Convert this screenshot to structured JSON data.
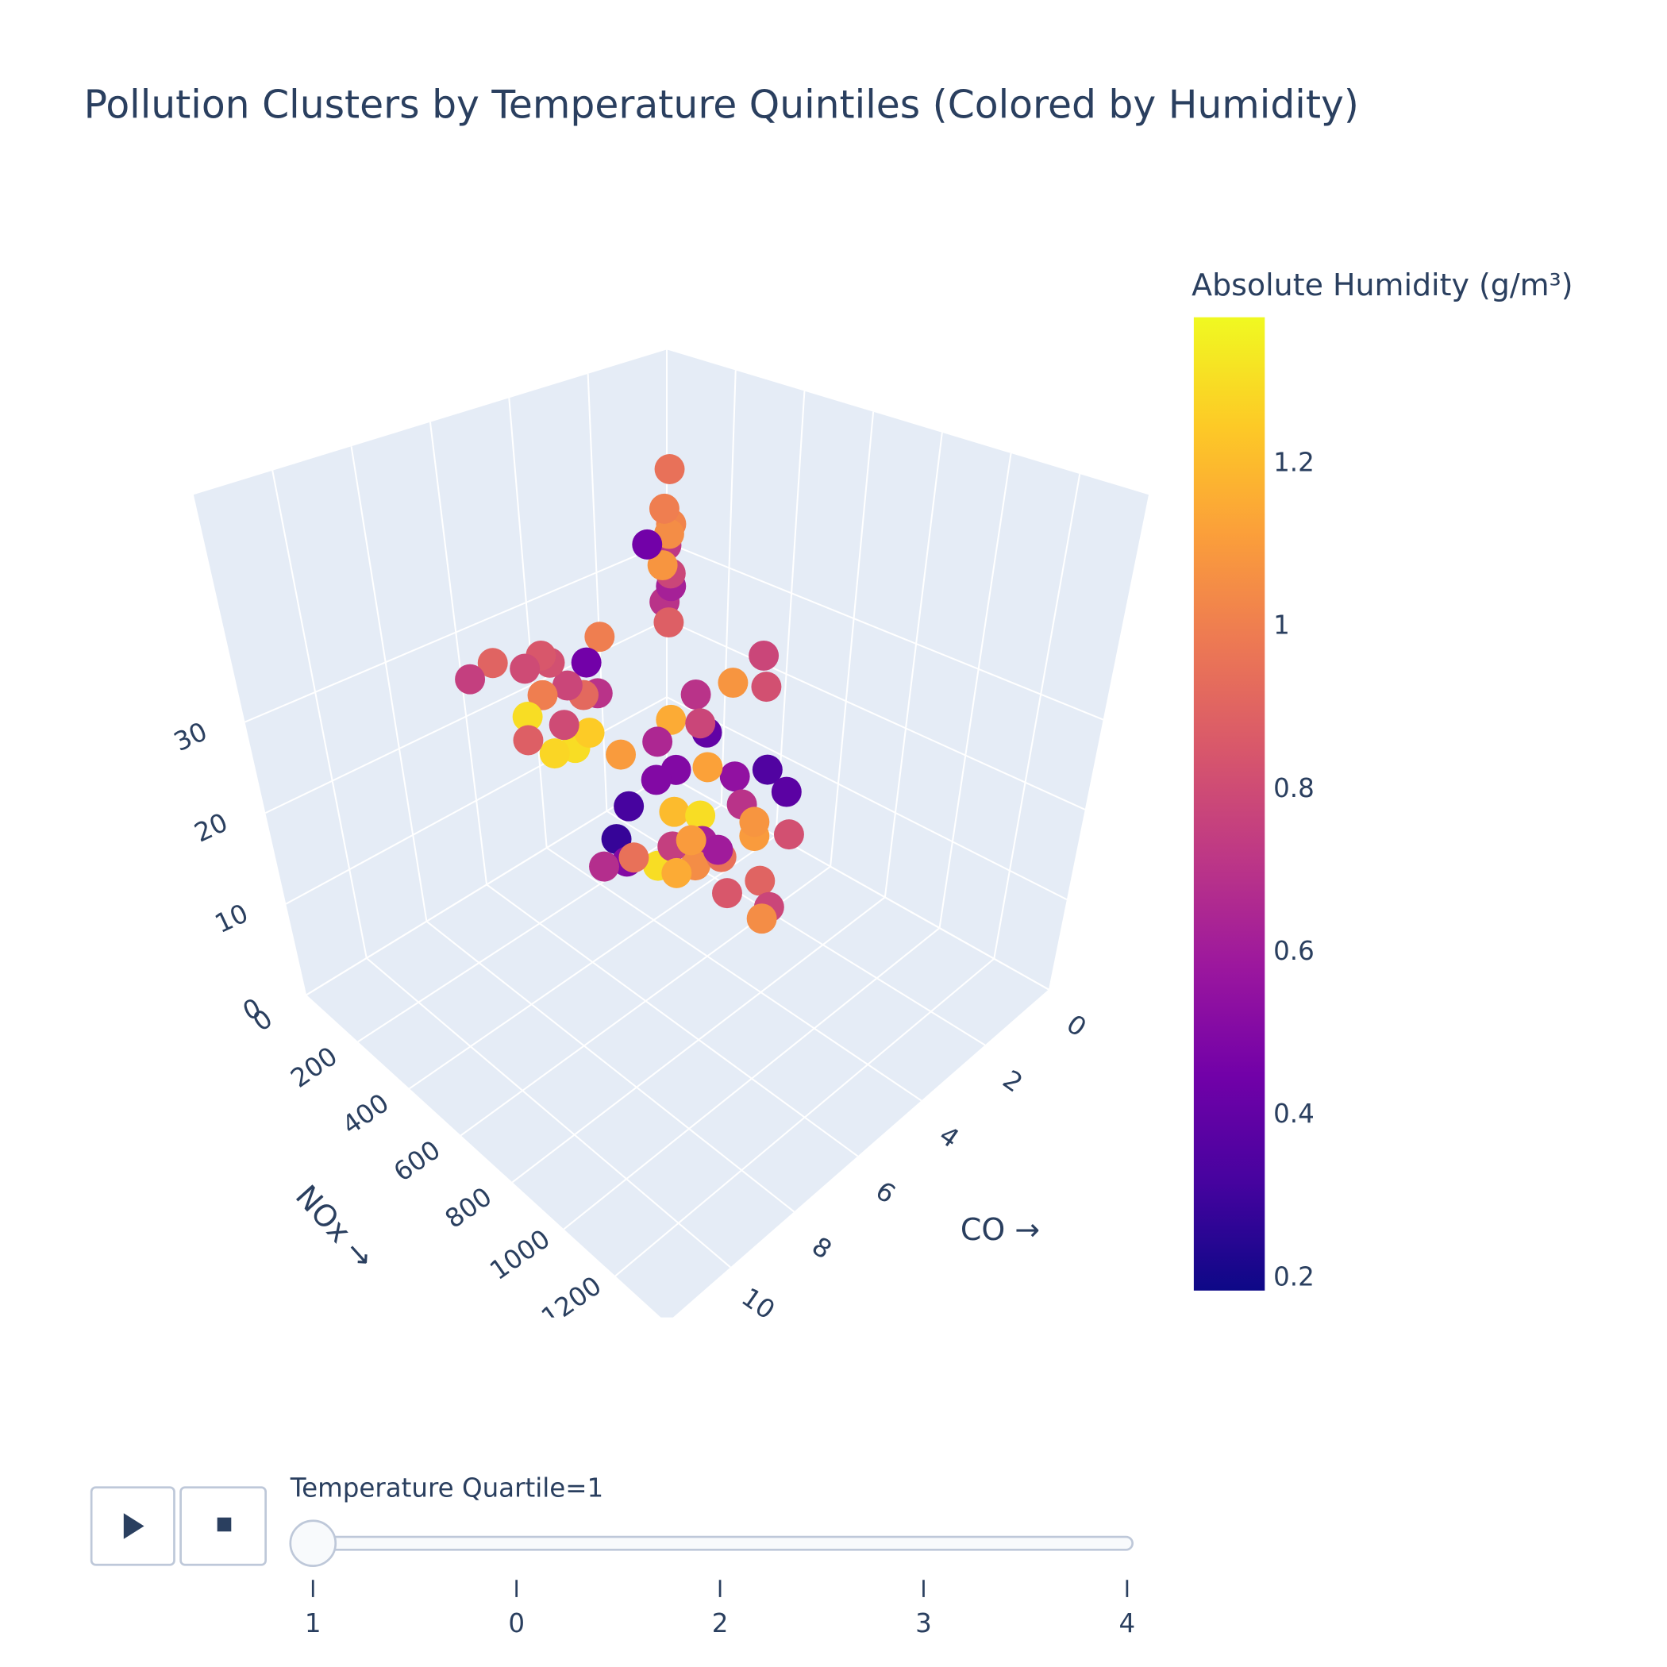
{
  "chart_data": {
    "type": "scatter3d",
    "title": "Pollution Clusters by Temperature Quintiles (Colored by Humidity)",
    "xaxis_title": "CO →",
    "yaxis_title": "NOx →",
    "xlim": [
      0,
      12
    ],
    "ylim": [
      0,
      1400
    ],
    "zlim": [
      0,
      55
    ],
    "xticks": [
      0,
      2,
      4,
      6,
      8,
      10
    ],
    "yticks": [
      0,
      200,
      400,
      600,
      800,
      1000,
      1200
    ],
    "zticks": [
      0,
      10,
      20,
      30
    ],
    "x": [
      0.1,
      0.2,
      0.1,
      0.2,
      0.1,
      0.3,
      0.2,
      0.1,
      0.2,
      0.3,
      0.6,
      6,
      5.4,
      4.6,
      4.2,
      3.8,
      4.4,
      3.5,
      4.8,
      5.0,
      4.0,
      4.5,
      3.8,
      3.3,
      3.0,
      2.8,
      3.6,
      2.5,
      2,
      1.5,
      2.5,
      3,
      3.6,
      3.2,
      2.8,
      2.2,
      1.8,
      2.4,
      1.6,
      1.2,
      1,
      0.8,
      0.6,
      1.4,
      1.9,
      2.6,
      3,
      1.2,
      0.9,
      0.5,
      0.25,
      0.4,
      0.7,
      1.1,
      2.0,
      2.6,
      1.5,
      2.1,
      2.9,
      3.4,
      1.7,
      2.3,
      1.3,
      0.9,
      2.7,
      1.9
    ],
    "y": [
      20,
      15,
      25,
      30,
      10,
      20,
      35,
      25,
      15,
      40,
      5,
      30,
      40,
      50,
      60,
      40,
      80,
      60,
      70,
      90,
      100,
      120,
      110,
      90,
      70,
      80,
      140,
      60,
      250,
      200,
      300,
      150,
      170,
      210,
      280,
      350,
      400,
      490,
      520,
      450,
      380,
      330,
      420,
      300,
      180,
      130,
      200,
      250,
      200,
      280,
      350,
      380,
      500,
      560,
      600,
      640,
      480,
      420,
      360,
      260,
      310,
      220,
      160,
      240,
      390,
      340
    ],
    "z": [
      40,
      35,
      33,
      32,
      30,
      28,
      27,
      25,
      23,
      21,
      31,
      25,
      26,
      24,
      25,
      23,
      21,
      20,
      19,
      17,
      17,
      15,
      14,
      19,
      22,
      18,
      16,
      24,
      5,
      8,
      3,
      2,
      0.5,
      1,
      1,
      1,
      2,
      1,
      1,
      4,
      6,
      8,
      10,
      10,
      12,
      11,
      7,
      14,
      16,
      18,
      22,
      19,
      9,
      6,
      0.5,
      1.5,
      7,
      4,
      2,
      3,
      5,
      9,
      13,
      12,
      6,
      3
    ],
    "marker_color": [
      0.95,
      1.0,
      1.02,
      1.05,
      0.72,
      1.08,
      0.78,
      0.62,
      0.7,
      0.88,
      0.45,
      0.75,
      0.9,
      0.8,
      0.85,
      0.82,
      1.0,
      0.78,
      1.3,
      0.88,
      0.8,
      1.28,
      1.3,
      0.92,
      0.45,
      0.7,
      1.25,
      1.0,
      1.2,
      0.5,
      0.75,
      0.28,
      0.68,
      0.5,
      1.3,
      1.05,
      0.95,
      0.85,
      0.9,
      1.1,
      0.7,
      0.55,
      0.35,
      1.12,
      0.65,
      1.1,
      0.32,
      0.78,
      0.7,
      1.08,
      0.78,
      0.82,
      0.38,
      0.82,
      0.78,
      1.05,
      1.08,
      0.6,
      1.15,
      0.95,
      1.3,
      0.5,
      1.15,
      0.4,
      1.1,
      0.62
    ],
    "colorscale": [
      "#0d0887",
      "#46039f",
      "#7201a8",
      "#9c179e",
      "#bd3786",
      "#d8576b",
      "#ed7953",
      "#fb9f3a",
      "#fdca26",
      "#f0f921"
    ],
    "colorbar": {
      "title": "Absolute Humidity (g/m³)",
      "range": [
        0.185,
        1.38
      ],
      "ticks": [
        0.2,
        0.4,
        0.6,
        0.8,
        1,
        1.2
      ]
    },
    "grid": true,
    "slider": {
      "current_label": "Temperature Quartile=1",
      "steps": [
        "1",
        "0",
        "2",
        "3",
        "4"
      ],
      "active": 0
    }
  }
}
